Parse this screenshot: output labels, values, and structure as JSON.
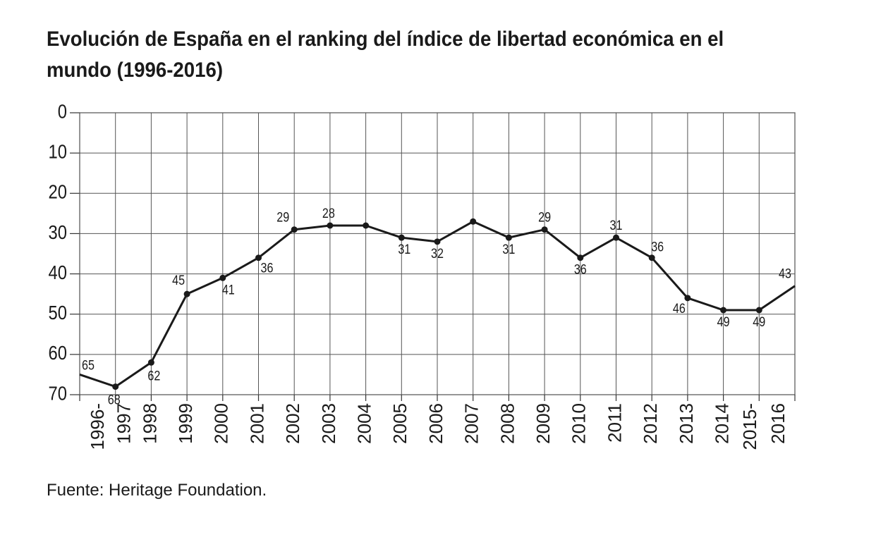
{
  "chart_data": {
    "type": "line",
    "title": "Evolución de España en el ranking del índice de libertad económica en el mundo (1996-2016)",
    "source": "Fuente: Heritage Foundation.",
    "categories": [
      "1996-",
      "1997",
      "1998",
      "1999",
      "2000",
      "2001",
      "2002",
      "2003",
      "2004",
      "2005",
      "2006",
      "2007",
      "2008",
      "2009",
      "2010",
      "2011",
      "2012",
      "2013",
      "2014",
      "2015-",
      "2016"
    ],
    "values": [
      65,
      68,
      62,
      45,
      41,
      36,
      29,
      28,
      28,
      31,
      32,
      27,
      31,
      29,
      36,
      31,
      36,
      46,
      49,
      49,
      43
    ],
    "value_labels": [
      "65",
      "68",
      "62",
      "45",
      "41",
      "36",
      "29",
      "28",
      null,
      "31",
      "32",
      null,
      "31",
      "29",
      "36",
      "31",
      "36",
      "46",
      "49",
      "49",
      "43"
    ],
    "color": "#1a1a1a",
    "ylim": [
      70,
      0
    ],
    "yticks": [
      0,
      10,
      20,
      30,
      40,
      50,
      60,
      70
    ],
    "grid": true
  }
}
